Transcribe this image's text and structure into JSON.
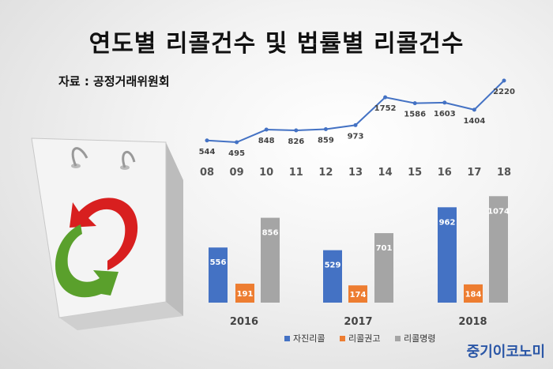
{
  "title": "연도별 리콜건수 및 법률별 리콜건수",
  "source": "자료 : 공정거래위원회",
  "logo": "중기이코노미",
  "colors": {
    "line": "#4472c4",
    "series": [
      "#4472c4",
      "#ed7d31",
      "#a5a5a5"
    ]
  },
  "illustration": "shopping-bag-with-recycle-arrows",
  "chart_data": [
    {
      "type": "line",
      "x": [
        "08",
        "09",
        "10",
        "11",
        "12",
        "13",
        "14",
        "15",
        "16",
        "17",
        "18"
      ],
      "values": [
        544,
        495,
        848,
        826,
        859,
        973,
        1752,
        1586,
        1603,
        1404,
        2220
      ],
      "ylim": [
        0,
        2400
      ],
      "grid": false
    },
    {
      "type": "bar",
      "categories": [
        "2016",
        "2017",
        "2018"
      ],
      "series": [
        {
          "name": "자진리콜",
          "values": [
            556,
            529,
            962
          ]
        },
        {
          "name": "리콜권고",
          "values": [
            191,
            174,
            184
          ]
        },
        {
          "name": "리콜명령",
          "values": [
            856,
            701,
            1074
          ]
        }
      ],
      "ylim": [
        0,
        1100
      ],
      "legend": "bottom",
      "grid": false
    }
  ]
}
